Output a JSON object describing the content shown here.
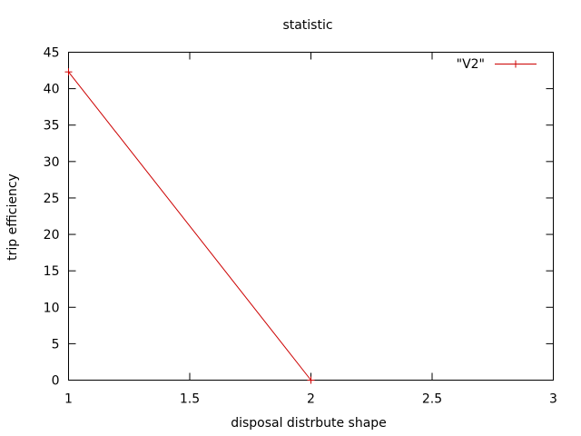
{
  "chart_data": {
    "type": "line",
    "title": "statistic",
    "xlabel": "disposal distrbute shape",
    "ylabel": "trip efficiency",
    "xlim": [
      1,
      3
    ],
    "ylim": [
      0,
      45
    ],
    "x_ticks": [
      1,
      1.5,
      2,
      2.5,
      3
    ],
    "x_tick_labels": [
      "1",
      "1.5",
      "2",
      "2.5",
      "3"
    ],
    "y_ticks": [
      0,
      5,
      10,
      15,
      20,
      25,
      30,
      35,
      40,
      45
    ],
    "y_tick_labels": [
      "0",
      "5",
      "10",
      "15",
      "20",
      "25",
      "30",
      "35",
      "40",
      "45"
    ],
    "grid": false,
    "legend_position": "top-right",
    "series": [
      {
        "name": "\"V2\"",
        "color": "#cc0000",
        "marker": "plus",
        "x": [
          1,
          2
        ],
        "y": [
          42.3,
          0
        ]
      }
    ]
  }
}
